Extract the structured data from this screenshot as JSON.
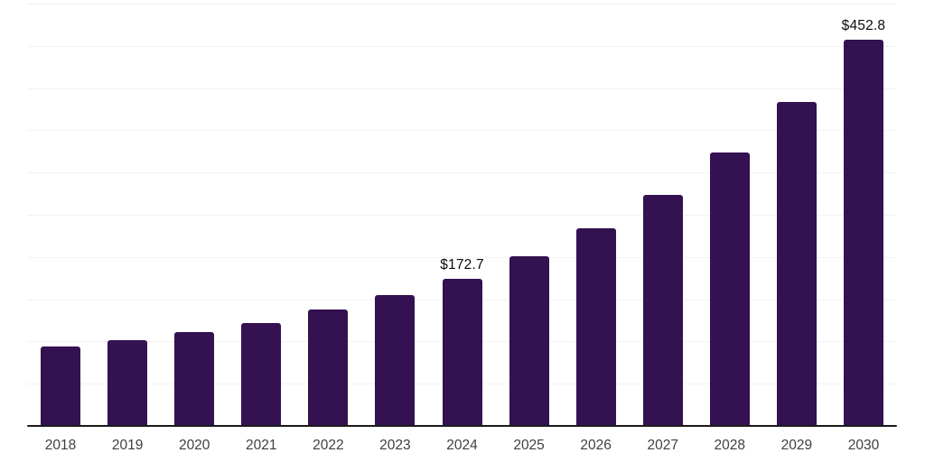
{
  "page": {
    "background_color": "#ffffff"
  },
  "chart_data": {
    "type": "bar",
    "title": "",
    "xlabel": "",
    "ylabel": "",
    "legend_position": "none",
    "grid": true,
    "gridline_count": 10,
    "ylim": [
      0,
      495
    ],
    "categories": [
      "2018",
      "2019",
      "2020",
      "2021",
      "2022",
      "2023",
      "2024",
      "2025",
      "2026",
      "2027",
      "2028",
      "2029",
      "2030"
    ],
    "values": [
      93.0,
      100.8,
      110.4,
      120.9,
      136.0,
      153.3,
      172.7,
      199.2,
      231.9,
      271.3,
      320.0,
      379.9,
      452.8
    ],
    "data_labels": {
      "2024": "$172.7",
      "2030": "$452.8"
    },
    "bar_color": "#341150",
    "axis_color": "#1a1a1a",
    "grid_color": "#f2f2f2",
    "tick_label_color": "#3f3f3f",
    "value_label_color": "#0b0b0b"
  }
}
